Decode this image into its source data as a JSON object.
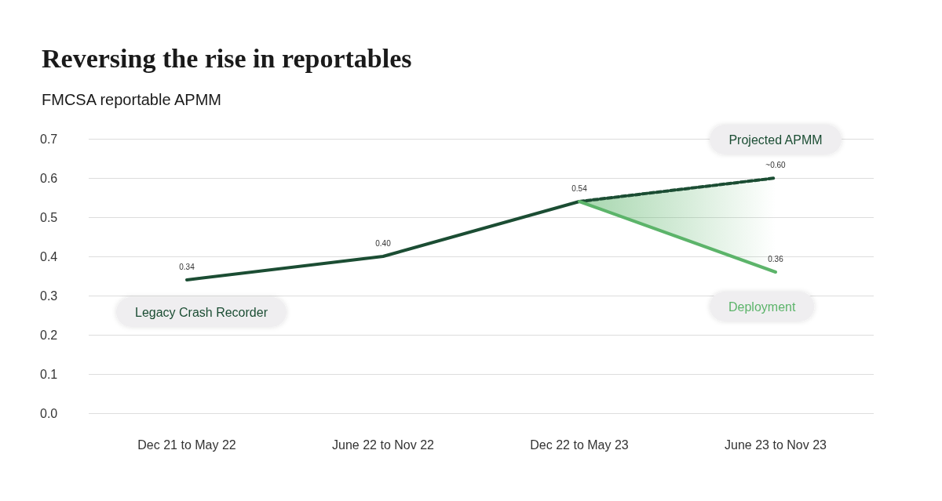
{
  "chart_data": {
    "type": "line",
    "title": "Reversing the rise in reportables",
    "subtitle": "FMCSA reportable APMM",
    "categories": [
      "Dec 21 to May 22",
      "June 22 to Nov 22",
      "Dec 22 to May 23",
      "June 23 to Nov 23"
    ],
    "series": [
      {
        "name": "Legacy Crash Recorder",
        "color": "#1b4d33",
        "line_style": "solid",
        "values": [
          0.34,
          0.4,
          0.54,
          null
        ],
        "value_labels": [
          "0.34",
          "0.40",
          "0.54",
          null
        ]
      },
      {
        "name": "Projected APMM",
        "color": "#1b4d33",
        "line_style": "dashed",
        "values": [
          null,
          null,
          0.54,
          0.6
        ],
        "value_labels": [
          null,
          null,
          null,
          "~0.60"
        ]
      },
      {
        "name": "Deployment",
        "color": "#5cb46a",
        "line_style": "solid",
        "values": [
          null,
          null,
          0.54,
          0.36
        ],
        "value_labels": [
          null,
          null,
          null,
          "0.36"
        ],
        "lower": [
          null,
          null,
          0.54,
          0.36
        ],
        "upper": [
          null,
          null,
          0.54,
          0.6
        ]
      }
    ],
    "ylim": [
      0,
      0.7
    ],
    "yticks": [
      {
        "value": 0,
        "label": "0.0"
      },
      {
        "value": 0.1,
        "label": "0.1"
      },
      {
        "value": 0.2,
        "label": "0.2"
      },
      {
        "value": 0.3,
        "label": "0.3"
      },
      {
        "value": 0.4,
        "label": "0.4"
      },
      {
        "value": 0.5,
        "label": "0.5"
      },
      {
        "value": 0.6,
        "label": "0.6"
      },
      {
        "value": 0.7,
        "label": "0.7"
      }
    ],
    "grid": "y",
    "legend": false,
    "marker": "none"
  }
}
